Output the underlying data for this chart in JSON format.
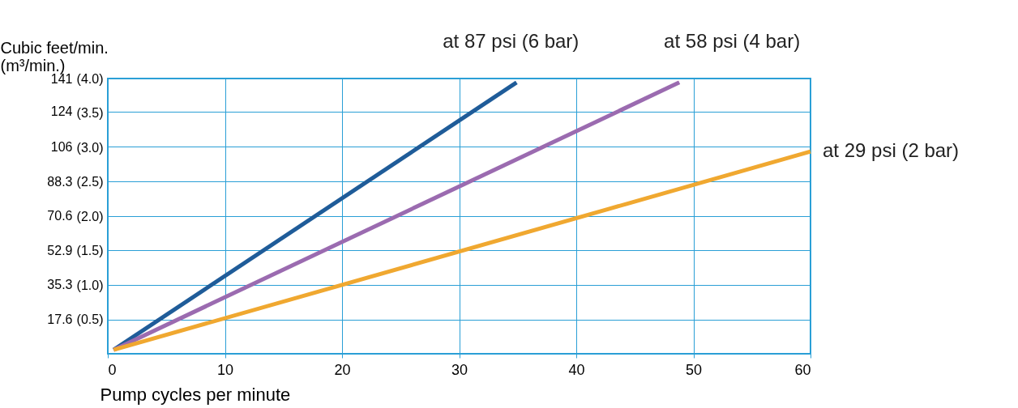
{
  "chart_data": {
    "type": "line",
    "xlabel": "Pump cycles per minute",
    "ylabel": "Cubic feet/min.\n(m³/min.)",
    "xlim": [
      0,
      60
    ],
    "xticks": [
      0,
      10,
      20,
      30,
      40,
      50,
      60
    ],
    "ylim": [
      0,
      141
    ],
    "yticks": [
      17.6,
      35.3,
      52.9,
      70.6,
      88.3,
      106,
      124,
      141
    ],
    "y2lim": [
      0,
      4.0
    ],
    "y2ticks": [
      {
        "value": 0.5,
        "label": "(0.5)"
      },
      {
        "value": 1.0,
        "label": "(1.0)"
      },
      {
        "value": 1.5,
        "label": "(1.5)"
      },
      {
        "value": 2.0,
        "label": "(2.0)"
      },
      {
        "value": 2.5,
        "label": "(2.5)"
      },
      {
        "value": 3.0,
        "label": "(3.0)"
      },
      {
        "value": 3.5,
        "label": "(3.5)"
      },
      {
        "value": 4.0,
        "label": "(4.0)"
      }
    ],
    "grid": true,
    "legend": false,
    "marker": "none",
    "line_style": "solid",
    "series": [
      {
        "name": "at 87 psi (6 bar)",
        "color": "#1f5c99",
        "x": [
          0.5,
          34.9
        ],
        "values": [
          2,
          139
        ]
      },
      {
        "name": "at 58 psi (4 bar)",
        "color": "#9b6bb0",
        "x": [
          0.5,
          48.8
        ],
        "values": [
          2,
          139
        ]
      },
      {
        "name": "at 29 psi (2 bar)",
        "color": "#f0a830",
        "x": [
          0.5,
          60
        ],
        "values": [
          2,
          103.6
        ]
      }
    ]
  }
}
